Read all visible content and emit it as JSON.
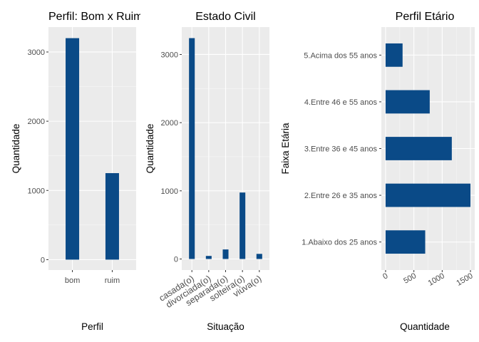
{
  "chart_data": [
    {
      "type": "bar",
      "title": "Perfil: Bom x Ruim",
      "xlabel": "Perfil",
      "ylabel": "Quantidade",
      "categories": [
        "bom",
        "ruim"
      ],
      "values": [
        3200,
        1250
      ],
      "ylim": [
        -150,
        3360
      ],
      "yticks": [
        0,
        1000,
        2000,
        3000
      ],
      "tick_labels": [
        "0",
        "1000",
        "2000",
        "3000"
      ],
      "bar_color": "#0a4a87",
      "panel_color": "#ebebeb",
      "grid": true
    },
    {
      "type": "bar",
      "title": "Estado Civil",
      "xlabel": "Situação",
      "ylabel": "Quantidade",
      "categories": [
        "casada(o)",
        "divorciada(o)",
        "separada(o)",
        "solteira(o)",
        "viúva(o)"
      ],
      "values": [
        3240,
        45,
        140,
        975,
        75
      ],
      "ylim": [
        -162,
        3402
      ],
      "yticks": [
        0,
        1000,
        2000,
        3000
      ],
      "tick_labels": [
        "0",
        "1000",
        "2000",
        "3000"
      ],
      "bar_color": "#0a4a87",
      "panel_color": "#ebebeb",
      "grid": true
    },
    {
      "type": "bar",
      "orientation": "horizontal",
      "title": "Perfil Etário",
      "xlabel": "Quantidade",
      "ylabel": "Faixa Etária",
      "categories": [
        "1.Abaixo dos 25 anos",
        "2.Entre 26 e 35 anos",
        "3.Entre 36 e 45 anos",
        "4.Entre 46 e 55 anos",
        "5.Acima dos 55 anos"
      ],
      "values": [
        700,
        1500,
        1170,
        780,
        300
      ],
      "xlim": [
        -75,
        1575
      ],
      "xticks": [
        0,
        500,
        1000,
        1500
      ],
      "tick_labels": [
        "0",
        "500",
        "1000",
        "1500"
      ],
      "bar_color": "#0a4a87",
      "panel_color": "#ebebeb",
      "grid": true
    }
  ]
}
